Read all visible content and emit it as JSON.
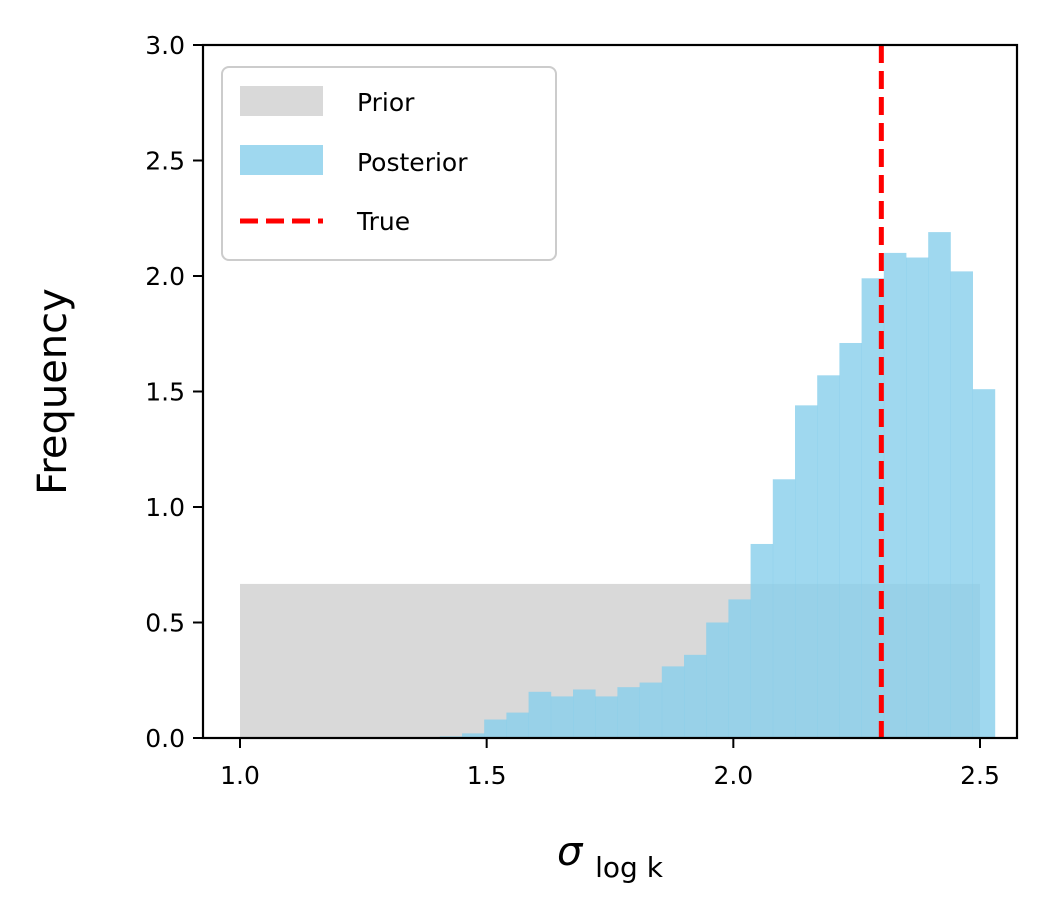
{
  "chart_data": {
    "type": "bar",
    "xlabel": "σ",
    "xlabel_subscript": "log k",
    "ylabel": "Frequency",
    "xlim": [
      0.925,
      2.575
    ],
    "ylim": [
      0,
      3
    ],
    "x_ticks": [
      1.0,
      1.5,
      2.0,
      2.5
    ],
    "x_tick_labels": [
      "1.0",
      "1.5",
      "2.0",
      "2.5"
    ],
    "y_ticks": [
      0.0,
      0.5,
      1.0,
      1.5,
      2.0,
      2.5,
      3.0
    ],
    "y_tick_labels": [
      "0.0",
      "0.5",
      "1.0",
      "1.5",
      "2.0",
      "2.5",
      "3.0"
    ],
    "grid": false,
    "legend_position": "top-left",
    "legend": {
      "prior_label": "Prior",
      "posterior_label": "Posterior",
      "true_label": "True"
    },
    "series": [
      {
        "name": "Prior",
        "kind": "histogram",
        "color": "#bfbfbf",
        "opacity": 0.6,
        "bins": [
          {
            "x0": 1.0,
            "x1": 2.5,
            "y": 0.667
          }
        ]
      },
      {
        "name": "Posterior",
        "kind": "histogram",
        "color": "#87ceeb",
        "opacity": 0.8,
        "bin_start": 1.0,
        "bin_width": 0.045,
        "values": [
          0,
          0,
          0,
          0,
          0,
          0,
          0,
          0,
          0.003,
          0.007,
          0.02,
          0.08,
          0.11,
          0.2,
          0.18,
          0.21,
          0.18,
          0.22,
          0.24,
          0.31,
          0.36,
          0.5,
          0.6,
          0.84,
          1.12,
          1.44,
          1.57,
          1.71,
          1.99,
          2.1,
          2.08,
          2.19,
          2.02,
          1.51
        ]
      },
      {
        "name": "True",
        "kind": "vline",
        "color": "#ff0000",
        "style": "dashed",
        "x": 2.3
      }
    ]
  },
  "colors": {
    "prior": "#bfbfbf",
    "posterior": "#87ceeb",
    "true_line": "#ff0000",
    "axes": "#000000"
  }
}
